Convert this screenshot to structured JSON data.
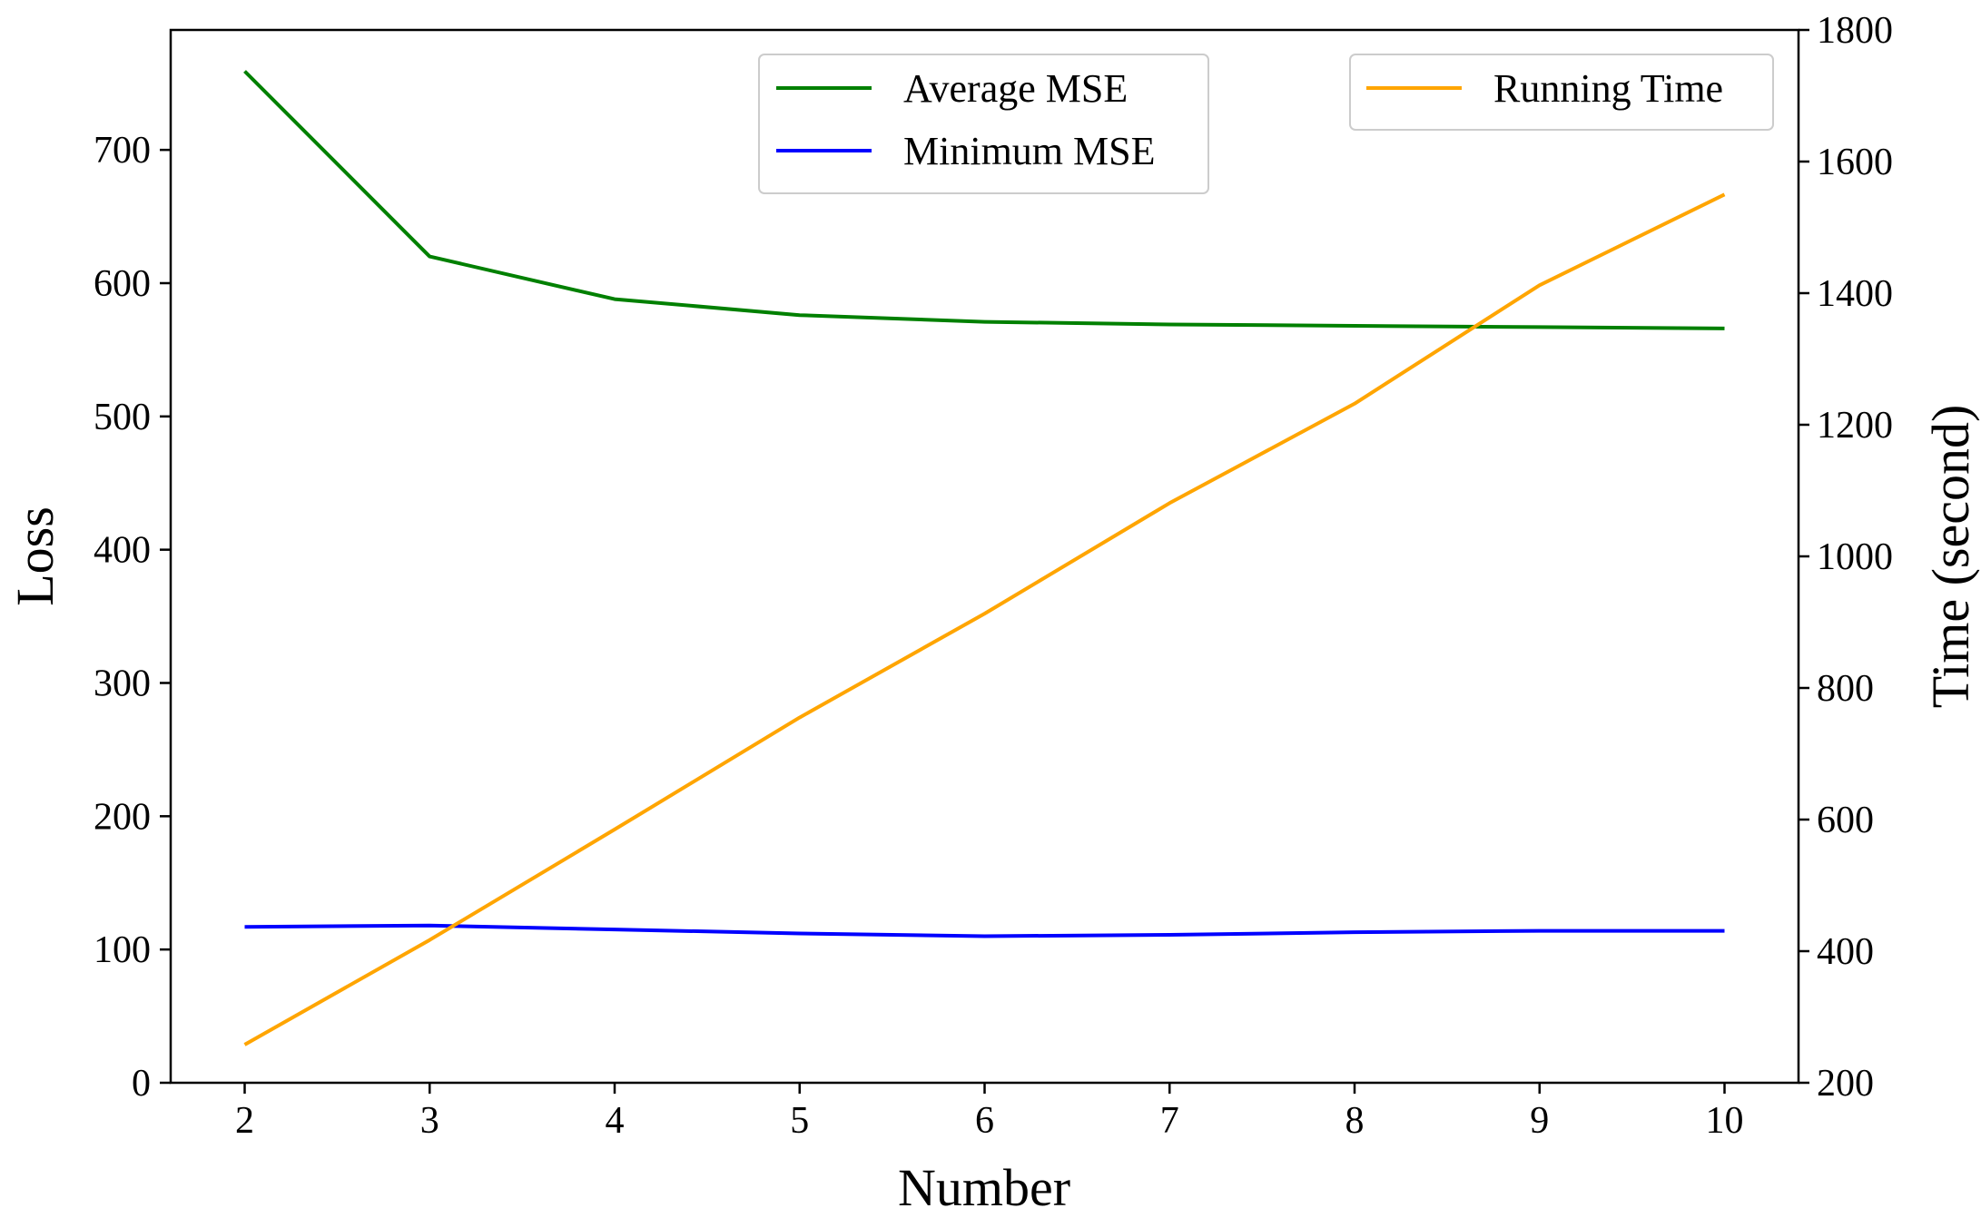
{
  "chart_data": {
    "type": "line",
    "x": [
      2,
      3,
      4,
      5,
      6,
      7,
      8,
      9,
      10
    ],
    "xlabel": "Number",
    "ylabel": "Loss",
    "y2label": "Time (second)",
    "xlim": [
      1.6,
      10.4
    ],
    "ylim": [
      0,
      790
    ],
    "y2lim": [
      200,
      1800
    ],
    "xticks": [
      2,
      3,
      4,
      5,
      6,
      7,
      8,
      9,
      10
    ],
    "yticks": [
      0,
      100,
      200,
      300,
      400,
      500,
      600,
      700
    ],
    "y2ticks": [
      200,
      400,
      600,
      800,
      1000,
      1200,
      1400,
      1600,
      1800
    ],
    "grid": false,
    "series": [
      {
        "name": "Average MSE",
        "axis": "left",
        "color": "#008000",
        "values": [
          759,
          620,
          588,
          576,
          571,
          569,
          568,
          567,
          566
        ]
      },
      {
        "name": "Minimum MSE",
        "axis": "left",
        "color": "#0000ff",
        "values": [
          117,
          118,
          115,
          112,
          110,
          111,
          113,
          114,
          114
        ]
      },
      {
        "name": "Running Time",
        "axis": "right",
        "color": "#ffa500",
        "values": [
          258,
          417,
          585,
          755,
          913,
          1081,
          1232,
          1412,
          1550
        ]
      }
    ],
    "legends": [
      {
        "placement": "top-center",
        "entries": [
          "Average MSE",
          "Minimum MSE"
        ]
      },
      {
        "placement": "top-right",
        "entries": [
          "Running Time"
        ]
      }
    ]
  }
}
